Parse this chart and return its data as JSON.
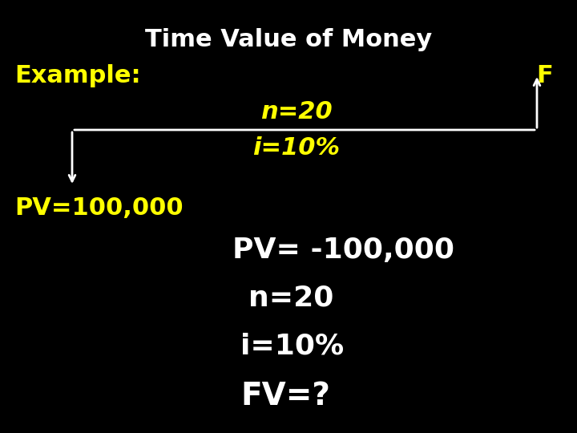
{
  "title": "Time Value of Money",
  "title_color": "#ffffff",
  "title_fontsize": 22,
  "title_bold": true,
  "background_color": "#000000",
  "example_label": "Example:",
  "example_color": "#ffff00",
  "example_fontsize": 22,
  "example_bold": true,
  "F_label": "F",
  "F_color": "#ffff00",
  "F_fontsize": 22,
  "F_bold": true,
  "n20_label": "n=20",
  "n20_color": "#ffff00",
  "n20_fontsize": 22,
  "i10_label": "i=10%",
  "i10_color": "#ffff00",
  "i10_fontsize": 22,
  "pv_label": "PV=100,000",
  "pv_color": "#ffff00",
  "pv_fontsize": 22,
  "pv_bold": true,
  "pv2_label": "PV= -100,000",
  "pv2_color": "#ffffff",
  "pv2_fontsize": 26,
  "n20_2_label": "n=20",
  "n20_2_color": "#ffffff",
  "n20_2_fontsize": 26,
  "i10_2_label": "i=10%",
  "i10_2_color": "#ffffff",
  "i10_2_fontsize": 26,
  "fv_label": "FV=?",
  "fv_color": "#ffffff",
  "fv_fontsize": 28,
  "fv_bold": true,
  "arrow_color": "#ffffff",
  "line_color": "#ffffff",
  "line_width": 2.0
}
